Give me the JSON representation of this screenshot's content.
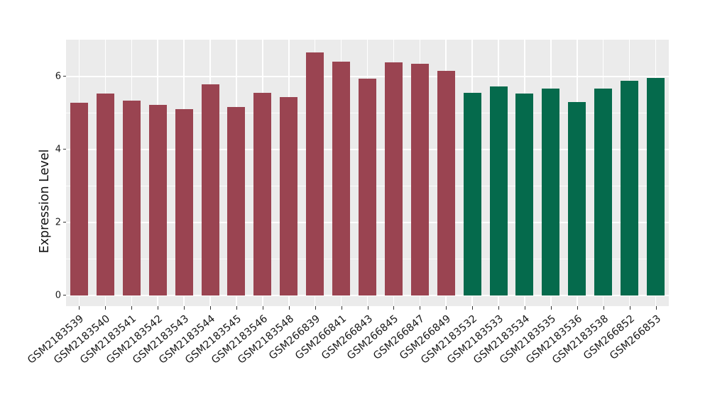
{
  "chart_data": {
    "type": "bar",
    "title": "",
    "ylabel": "Expression Level",
    "xlabel": "",
    "ylim": [
      -0.3,
      7.0
    ],
    "yticks": [
      0,
      2,
      4,
      6
    ],
    "minor_yticks": [
      1,
      3,
      5
    ],
    "grid": "on",
    "legend": "none",
    "panel_bg": "#EBEBEB",
    "grid_color": "#FFFFFF",
    "tick_color": "#333333",
    "text_color": "#1A1A1A",
    "group_colors": {
      "group1": "#9A4451",
      "group2": "#056A4C"
    },
    "bars": [
      {
        "label": "GSM2183539",
        "value": 5.27,
        "group": "group1"
      },
      {
        "label": "GSM2183540",
        "value": 5.52,
        "group": "group1"
      },
      {
        "label": "GSM2183541",
        "value": 5.34,
        "group": "group1"
      },
      {
        "label": "GSM2183542",
        "value": 5.21,
        "group": "group1"
      },
      {
        "label": "GSM2183543",
        "value": 5.1,
        "group": "group1"
      },
      {
        "label": "GSM2183544",
        "value": 5.78,
        "group": "group1"
      },
      {
        "label": "GSM2183545",
        "value": 5.16,
        "group": "group1"
      },
      {
        "label": "GSM2183546",
        "value": 5.55,
        "group": "group1"
      },
      {
        "label": "GSM2183548",
        "value": 5.43,
        "group": "group1"
      },
      {
        "label": "GSM266839",
        "value": 6.65,
        "group": "group1"
      },
      {
        "label": "GSM266841",
        "value": 6.4,
        "group": "group1"
      },
      {
        "label": "GSM266843",
        "value": 5.93,
        "group": "group1"
      },
      {
        "label": "GSM266845",
        "value": 6.38,
        "group": "group1"
      },
      {
        "label": "GSM266847",
        "value": 6.35,
        "group": "group1"
      },
      {
        "label": "GSM266849",
        "value": 6.14,
        "group": "group1"
      },
      {
        "label": "GSM2183532",
        "value": 5.54,
        "group": "group2"
      },
      {
        "label": "GSM2183533",
        "value": 5.72,
        "group": "group2"
      },
      {
        "label": "GSM2183534",
        "value": 5.53,
        "group": "group2"
      },
      {
        "label": "GSM2183535",
        "value": 5.67,
        "group": "group2"
      },
      {
        "label": "GSM2183536",
        "value": 5.3,
        "group": "group2"
      },
      {
        "label": "GSM2183538",
        "value": 5.66,
        "group": "group2"
      },
      {
        "label": "GSM266852",
        "value": 5.87,
        "group": "group2"
      },
      {
        "label": "GSM266853",
        "value": 5.96,
        "group": "group2"
      }
    ]
  }
}
